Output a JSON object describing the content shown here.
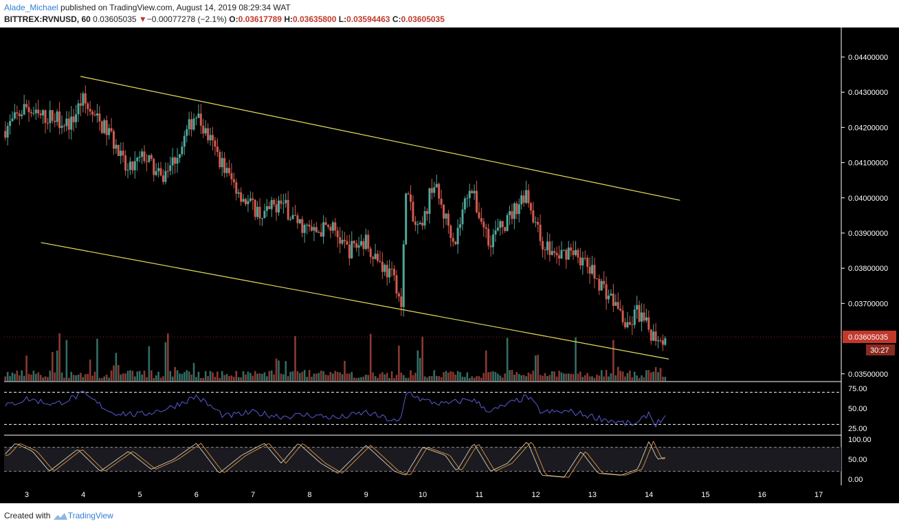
{
  "header": {
    "author": "Alade_Michael",
    "published": " published on TradingView.com, August 14, 2019 08:29:34 WAT",
    "symbol": "BITTREX:RVNUSD, 60",
    "last": "0.03605035",
    "change_arrow": "▼",
    "change": "−0.00077278 (−2.1%)",
    "o_label": "O:",
    "o_value": "0.03617789",
    "h_label": "H:",
    "h_value": "0.03635800",
    "l_label": "L:",
    "l_value": "0.03594463",
    "c_label": "C:",
    "c_value": "0.03605035"
  },
  "footer": {
    "created_with": "Created with",
    "brand": "TradingView"
  },
  "colors": {
    "background": "#000000",
    "up": "#4fa89a",
    "down": "#d35a4e",
    "trendline": "#e8e05a",
    "rsi": "#5b5bd6",
    "stoch_k": "#c8c0a8",
    "stoch_d": "#d28a3a",
    "price_tag": "#c0392b"
  },
  "chart_data": {
    "type": "candlestick",
    "price_axis": {
      "range": [
        0.0348,
        0.0448
      ],
      "ticks": [
        "0.04400000",
        "0.04300000",
        "0.04200000",
        "0.04100000",
        "0.04000000",
        "0.03900000",
        "0.03800000",
        "0.03700000",
        "0.03500000"
      ],
      "tick_values": [
        0.044,
        0.043,
        0.042,
        0.041,
        0.04,
        0.039,
        0.038,
        0.037,
        0.035
      ]
    },
    "current_price": "0.03605035",
    "countdown": "30:27",
    "x_axis": {
      "labels": [
        "3",
        "4",
        "5",
        "6",
        "7",
        "8",
        "9",
        "10",
        "11",
        "12",
        "13",
        "14",
        "15",
        "16",
        "17"
      ],
      "range": [
        2.6,
        17.4
      ],
      "last_bar_day": 14.32
    },
    "price_anchors": [
      [
        2.6,
        0.0419
      ],
      [
        2.8,
        0.0422
      ],
      [
        3.0,
        0.0426
      ],
      [
        3.2,
        0.0423
      ],
      [
        3.5,
        0.0423
      ],
      [
        3.8,
        0.0421
      ],
      [
        4.0,
        0.0428
      ],
      [
        4.2,
        0.0423
      ],
      [
        4.5,
        0.0418
      ],
      [
        4.8,
        0.0407
      ],
      [
        5.1,
        0.0412
      ],
      [
        5.4,
        0.0405
      ],
      [
        5.7,
        0.0413
      ],
      [
        6.0,
        0.0424
      ],
      [
        6.3,
        0.0415
      ],
      [
        6.6,
        0.0406
      ],
      [
        6.9,
        0.0399
      ],
      [
        7.2,
        0.0395
      ],
      [
        7.5,
        0.0399
      ],
      [
        7.8,
        0.0393
      ],
      [
        8.1,
        0.039
      ],
      [
        8.4,
        0.0392
      ],
      [
        8.7,
        0.0385
      ],
      [
        9.0,
        0.0388
      ],
      [
        9.3,
        0.0381
      ],
      [
        9.55,
        0.0376
      ],
      [
        9.65,
        0.0368
      ],
      [
        9.72,
        0.0404
      ],
      [
        9.85,
        0.0393
      ],
      [
        10.0,
        0.039
      ],
      [
        10.2,
        0.0405
      ],
      [
        10.4,
        0.0395
      ],
      [
        10.6,
        0.0388
      ],
      [
        10.85,
        0.0404
      ],
      [
        11.0,
        0.0396
      ],
      [
        11.2,
        0.0388
      ],
      [
        11.5,
        0.0393
      ],
      [
        11.85,
        0.0402
      ],
      [
        12.1,
        0.0388
      ],
      [
        12.4,
        0.0383
      ],
      [
        12.65,
        0.0386
      ],
      [
        12.9,
        0.0381
      ],
      [
        13.2,
        0.0375
      ],
      [
        13.5,
        0.0368
      ],
      [
        13.65,
        0.0362
      ],
      [
        13.8,
        0.0368
      ],
      [
        14.0,
        0.0363
      ],
      [
        14.1,
        0.0361
      ],
      [
        14.3,
        0.03605
      ]
    ],
    "channel": {
      "upper": [
        [
          3.95,
          0.04345
        ],
        [
          14.55,
          0.03993
        ]
      ],
      "lower": [
        [
          3.25,
          0.03873
        ],
        [
          14.35,
          0.03542
        ]
      ]
    },
    "rsi": {
      "levels": [
        75,
        50,
        25
      ],
      "upper_band": 70,
      "lower_band": 30,
      "tick_labels": [
        "75.00",
        "50.00",
        "25.00"
      ],
      "anchors": [
        [
          2.6,
          52
        ],
        [
          3.0,
          62
        ],
        [
          3.5,
          55
        ],
        [
          4.0,
          68
        ],
        [
          4.5,
          45
        ],
        [
          5.0,
          42
        ],
        [
          5.5,
          50
        ],
        [
          6.0,
          65
        ],
        [
          6.5,
          40
        ],
        [
          7.0,
          45
        ],
        [
          7.5,
          40
        ],
        [
          8.0,
          42
        ],
        [
          8.5,
          38
        ],
        [
          9.0,
          45
        ],
        [
          9.6,
          32
        ],
        [
          9.72,
          72
        ],
        [
          10.0,
          60
        ],
        [
          10.4,
          55
        ],
        [
          10.85,
          62
        ],
        [
          11.2,
          46
        ],
        [
          11.85,
          65
        ],
        [
          12.1,
          45
        ],
        [
          12.6,
          46
        ],
        [
          13.0,
          40
        ],
        [
          13.5,
          32
        ],
        [
          13.8,
          30
        ],
        [
          14.0,
          45
        ],
        [
          14.1,
          30
        ],
        [
          14.3,
          40
        ]
      ]
    },
    "stoch": {
      "upper_band": 80,
      "lower_band": 20,
      "tick_labels": [
        "100.00",
        "50.00",
        "0.00"
      ],
      "tick_values": [
        100,
        50,
        0
      ],
      "anchors": [
        [
          2.6,
          60
        ],
        [
          2.8,
          90
        ],
        [
          3.1,
          70
        ],
        [
          3.4,
          20
        ],
        [
          3.9,
          75
        ],
        [
          4.3,
          20
        ],
        [
          4.8,
          70
        ],
        [
          5.2,
          25
        ],
        [
          5.6,
          50
        ],
        [
          6.0,
          90
        ],
        [
          6.4,
          15
        ],
        [
          6.8,
          60
        ],
        [
          7.2,
          90
        ],
        [
          7.5,
          40
        ],
        [
          7.8,
          90
        ],
        [
          8.2,
          40
        ],
        [
          8.5,
          15
        ],
        [
          9.0,
          85
        ],
        [
          9.5,
          20
        ],
        [
          9.7,
          10
        ],
        [
          10.0,
          80
        ],
        [
          10.4,
          60
        ],
        [
          10.6,
          20
        ],
        [
          10.9,
          90
        ],
        [
          11.2,
          20
        ],
        [
          11.5,
          40
        ],
        [
          11.85,
          95
        ],
        [
          12.1,
          10
        ],
        [
          12.5,
          5
        ],
        [
          12.8,
          70
        ],
        [
          13.1,
          15
        ],
        [
          13.5,
          10
        ],
        [
          13.8,
          25
        ],
        [
          14.0,
          95
        ],
        [
          14.15,
          50
        ],
        [
          14.3,
          55
        ]
      ]
    }
  }
}
